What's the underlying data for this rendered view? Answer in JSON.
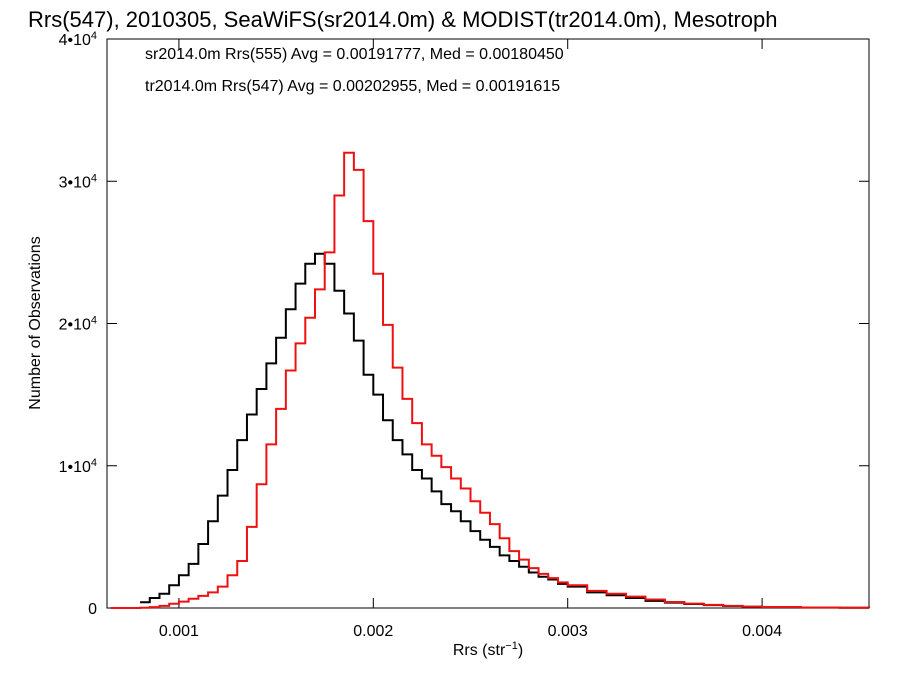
{
  "chart_data": {
    "type": "line",
    "title": "Rrs(547), 2010305, SeaWiFS(sr2014.0m) & MODIST(tr2014.0m), Mesotroph",
    "xlabel_main": "Rrs (str",
    "xlabel_sup": "−1",
    "xlabel_close": ")",
    "ylabel": "Number of Observations",
    "xlim": [
      0.00063,
      0.00455
    ],
    "ylim": [
      0,
      40000
    ],
    "x_ticks": [
      {
        "value": 0.001,
        "label": "0.001"
      },
      {
        "value": 0.002,
        "label": "0.002"
      },
      {
        "value": 0.003,
        "label": "0.003"
      },
      {
        "value": 0.004,
        "label": "0.004"
      }
    ],
    "y_ticks": [
      {
        "value": 0,
        "label": "0",
        "exp": ""
      },
      {
        "value": 10000,
        "label": "1•10",
        "exp": "4"
      },
      {
        "value": 20000,
        "label": "2•10",
        "exp": "4"
      },
      {
        "value": 30000,
        "label": "3•10",
        "exp": "4"
      },
      {
        "value": 40000,
        "label": "4•10",
        "exp": "4"
      }
    ],
    "series": [
      {
        "label": "sr2014.0m Rrs(555) Avg = 0.00191777, Med = 0.00180450",
        "color": "#000000",
        "points": [
          [
            0.0008,
            400
          ],
          [
            0.00085,
            700
          ],
          [
            0.0009,
            1000
          ],
          [
            0.00095,
            1600
          ],
          [
            0.001,
            2300
          ],
          [
            0.00105,
            3100
          ],
          [
            0.0011,
            4500
          ],
          [
            0.00115,
            6100
          ],
          [
            0.0012,
            7900
          ],
          [
            0.00125,
            9700
          ],
          [
            0.0013,
            11800
          ],
          [
            0.00135,
            13600
          ],
          [
            0.0014,
            15400
          ],
          [
            0.00145,
            17200
          ],
          [
            0.0015,
            19000
          ],
          [
            0.00155,
            21000
          ],
          [
            0.0016,
            22800
          ],
          [
            0.00165,
            24200
          ],
          [
            0.0017,
            24900
          ],
          [
            0.00175,
            24200
          ],
          [
            0.0018,
            22300
          ],
          [
            0.00185,
            20700
          ],
          [
            0.0019,
            18800
          ],
          [
            0.00195,
            16400
          ],
          [
            0.002,
            15000
          ],
          [
            0.00205,
            13200
          ],
          [
            0.0021,
            11800
          ],
          [
            0.00215,
            10800
          ],
          [
            0.0022,
            9700
          ],
          [
            0.00225,
            9100
          ],
          [
            0.0023,
            8200
          ],
          [
            0.00235,
            7300
          ],
          [
            0.0024,
            6800
          ],
          [
            0.00245,
            6100
          ],
          [
            0.0025,
            5400
          ],
          [
            0.00255,
            4800
          ],
          [
            0.0026,
            4300
          ],
          [
            0.00265,
            3700
          ],
          [
            0.0027,
            3300
          ],
          [
            0.00275,
            2900
          ],
          [
            0.0028,
            2500
          ],
          [
            0.00285,
            2200
          ],
          [
            0.0029,
            2000
          ],
          [
            0.00295,
            1700
          ],
          [
            0.003,
            1500
          ],
          [
            0.0031,
            1100
          ],
          [
            0.0032,
            900
          ],
          [
            0.0033,
            700
          ],
          [
            0.0034,
            500
          ],
          [
            0.0035,
            380
          ],
          [
            0.0036,
            280
          ],
          [
            0.0037,
            200
          ],
          [
            0.0038,
            140
          ],
          [
            0.0039,
            90
          ],
          [
            0.004,
            60
          ],
          [
            0.0042,
            30
          ],
          [
            0.0044,
            15
          ],
          [
            0.00455,
            5
          ]
        ]
      },
      {
        "label": "tr2014.0m Rrs(547) Avg = 0.00202955, Med = 0.00191615",
        "color": "#ee1111",
        "points": [
          [
            0.00065,
            0
          ],
          [
            0.00075,
            0
          ],
          [
            0.0008,
            20
          ],
          [
            0.00085,
            60
          ],
          [
            0.0009,
            150
          ],
          [
            0.00095,
            300
          ],
          [
            0.001,
            450
          ],
          [
            0.00105,
            650
          ],
          [
            0.0011,
            850
          ],
          [
            0.00115,
            1100
          ],
          [
            0.0012,
            1500
          ],
          [
            0.00125,
            2300
          ],
          [
            0.0013,
            3300
          ],
          [
            0.00135,
            5700
          ],
          [
            0.0014,
            8700
          ],
          [
            0.00145,
            11500
          ],
          [
            0.0015,
            14000
          ],
          [
            0.00155,
            16700
          ],
          [
            0.0016,
            18600
          ],
          [
            0.00165,
            20400
          ],
          [
            0.0017,
            22400
          ],
          [
            0.00175,
            25000
          ],
          [
            0.0018,
            29000
          ],
          [
            0.00185,
            32000
          ],
          [
            0.0019,
            30800
          ],
          [
            0.00195,
            27200
          ],
          [
            0.002,
            23500
          ],
          [
            0.00205,
            19900
          ],
          [
            0.0021,
            16900
          ],
          [
            0.00215,
            14700
          ],
          [
            0.0022,
            13000
          ],
          [
            0.00225,
            11500
          ],
          [
            0.0023,
            10700
          ],
          [
            0.00235,
            9900
          ],
          [
            0.0024,
            9100
          ],
          [
            0.00245,
            8400
          ],
          [
            0.0025,
            7500
          ],
          [
            0.00255,
            6700
          ],
          [
            0.0026,
            5900
          ],
          [
            0.00265,
            4900
          ],
          [
            0.0027,
            4000
          ],
          [
            0.00275,
            3400
          ],
          [
            0.0028,
            2800
          ],
          [
            0.00285,
            2400
          ],
          [
            0.0029,
            2100
          ],
          [
            0.00295,
            1800
          ],
          [
            0.003,
            1600
          ],
          [
            0.0031,
            1200
          ],
          [
            0.0032,
            1000
          ],
          [
            0.0033,
            800
          ],
          [
            0.0034,
            600
          ],
          [
            0.0035,
            420
          ],
          [
            0.0036,
            310
          ],
          [
            0.0037,
            220
          ],
          [
            0.0038,
            150
          ],
          [
            0.0039,
            100
          ],
          [
            0.004,
            70
          ],
          [
            0.0042,
            35
          ],
          [
            0.0044,
            15
          ],
          [
            0.00455,
            5
          ]
        ]
      }
    ],
    "grid": false,
    "legend_position": "top-left"
  }
}
